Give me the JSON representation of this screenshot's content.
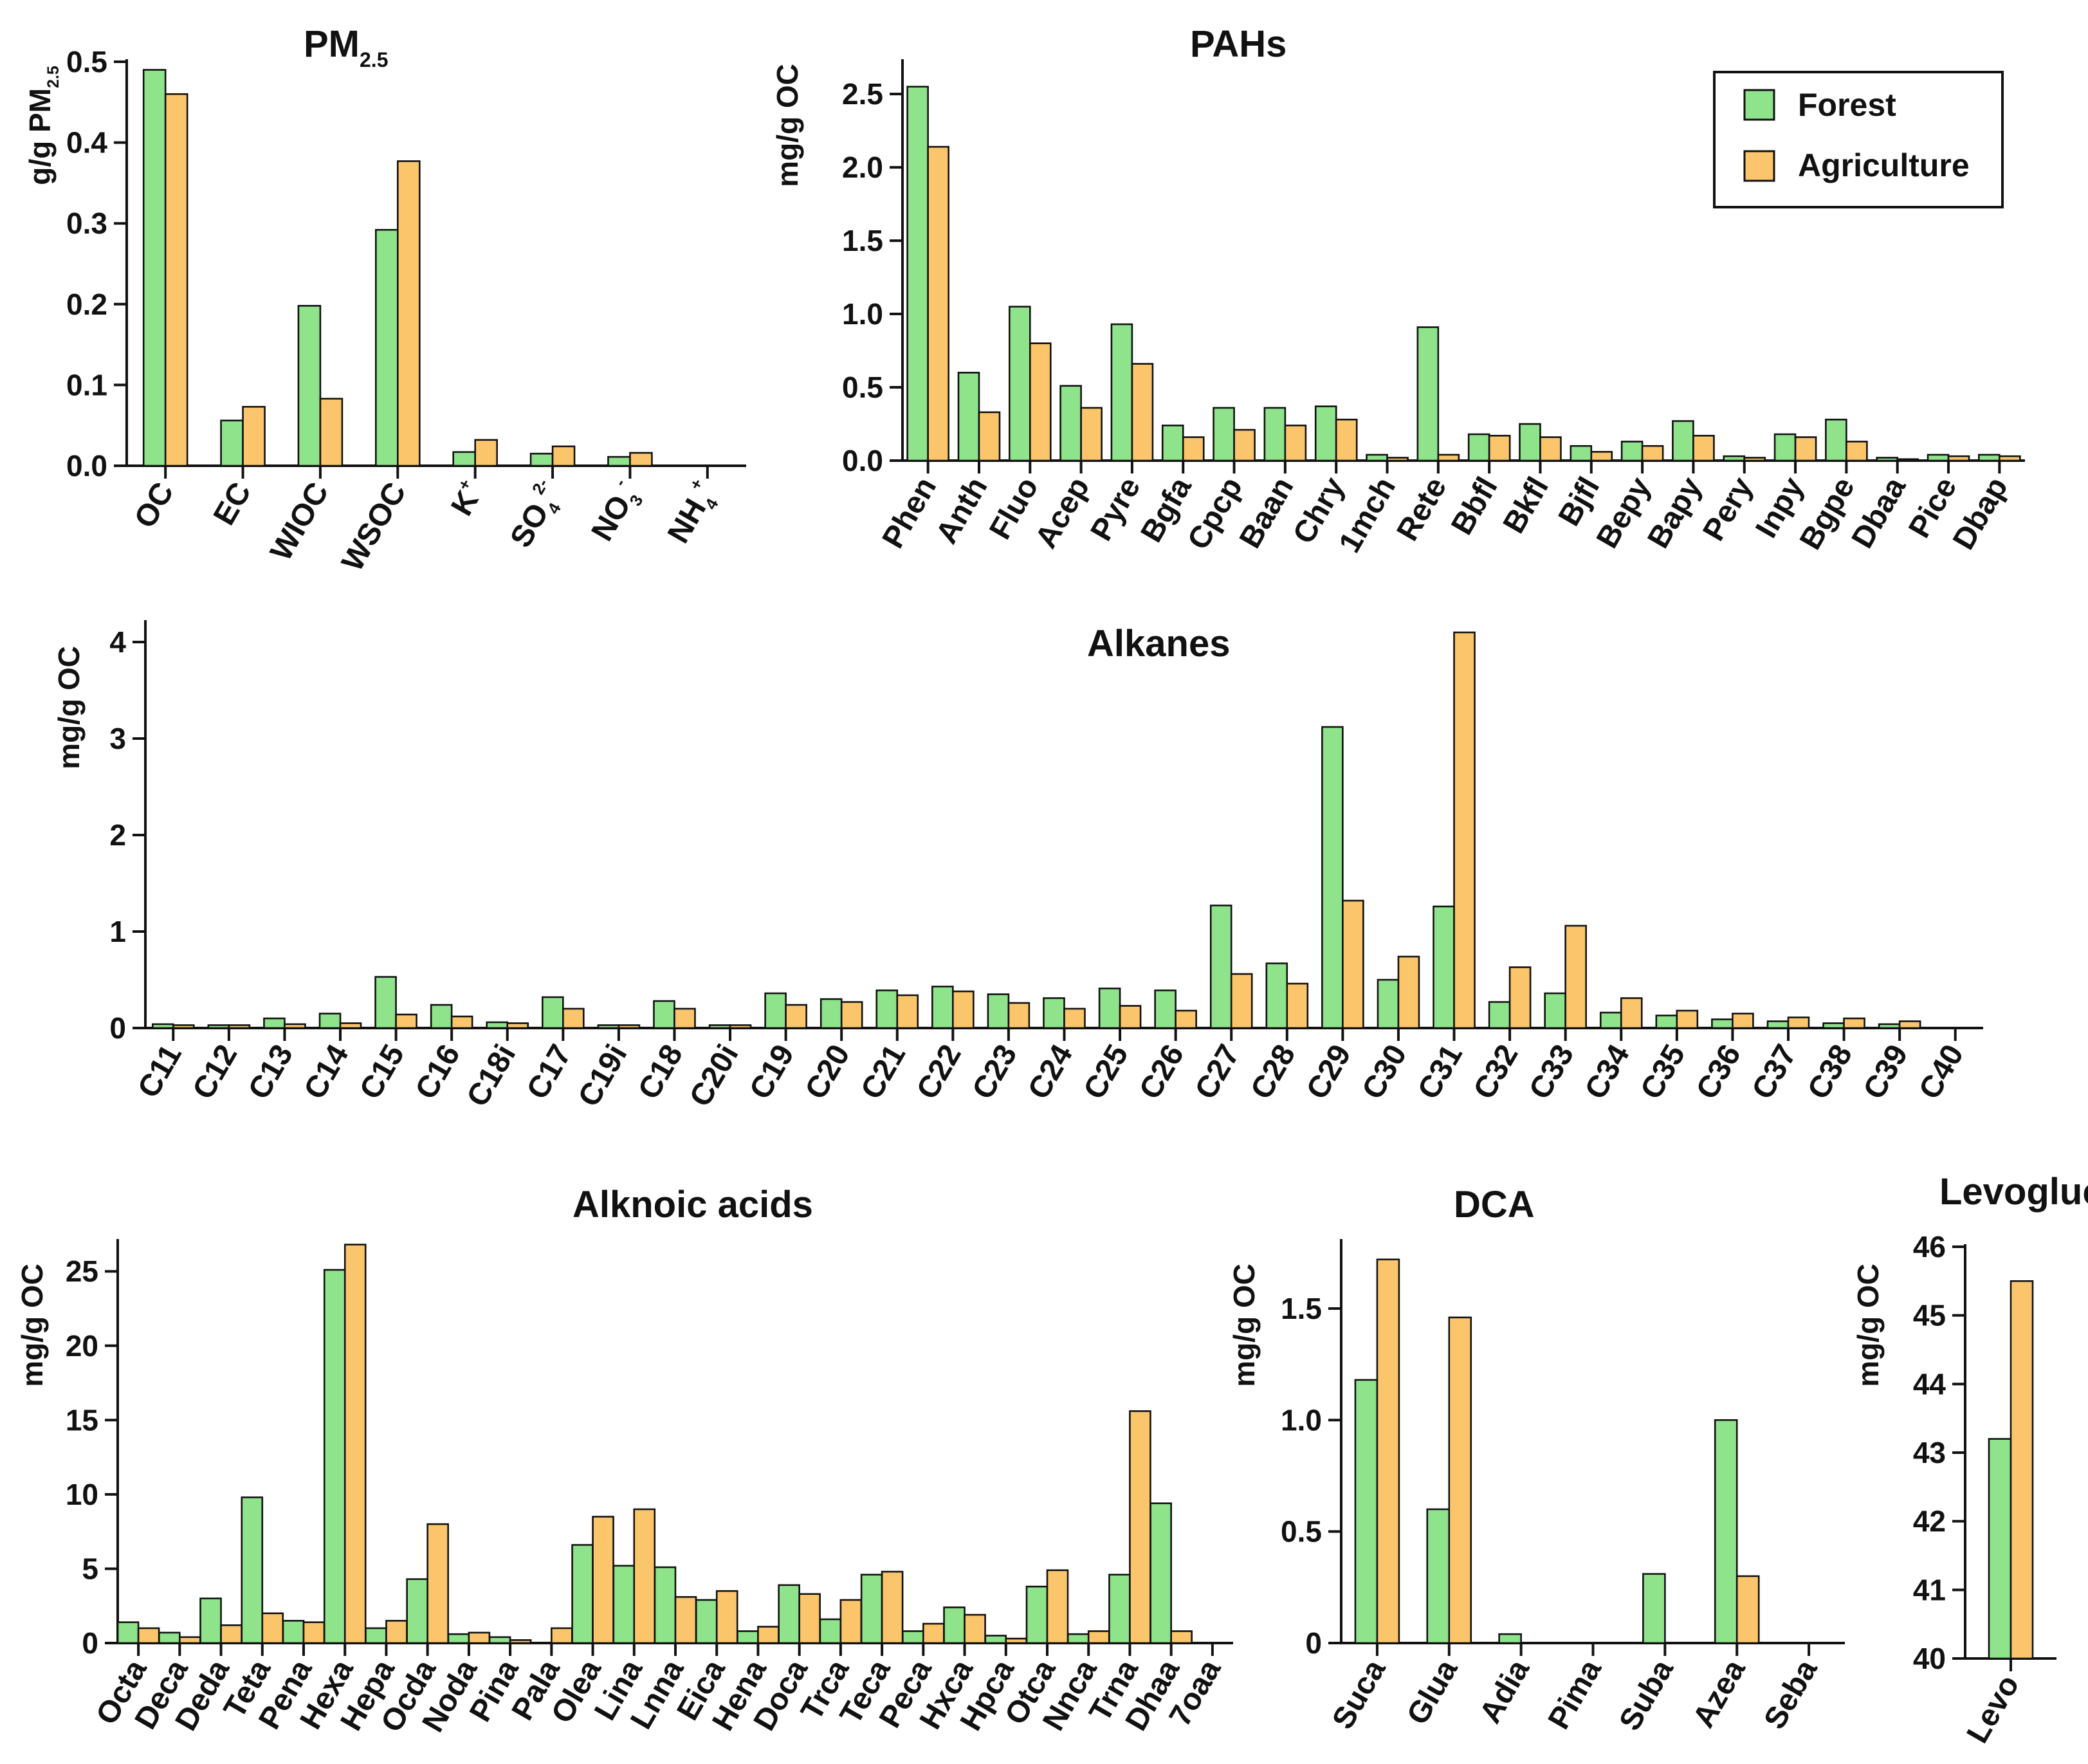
{
  "colors": {
    "forest": "#8ee38b",
    "agriculture": "#fbc56b",
    "axis": "#111111"
  },
  "legend": {
    "items": [
      "Forest",
      "Agriculture"
    ],
    "placement": "top-right of PAHs panel"
  },
  "chart_data": [
    {
      "id": "pm25",
      "type": "bar",
      "title": "PM",
      "title_sub": "2.5",
      "ylabel": "g/g PM",
      "ylabel_sub": "2.5",
      "ylim": [
        0,
        0.5
      ],
      "yticks": [
        "0.0",
        "0.1",
        "0.2",
        "0.3",
        "0.4",
        "0.5"
      ],
      "categories": [
        {
          "base": "OC"
        },
        {
          "base": "EC"
        },
        {
          "base": "WIOC"
        },
        {
          "base": "WSOC"
        },
        {
          "base": "K",
          "sup": "+"
        },
        {
          "base": "SO",
          "sub": "4",
          "sup": "2-"
        },
        {
          "base": "NO",
          "sub": "3",
          "sup": "-"
        },
        {
          "base": "NH",
          "sub": "4",
          "sup": "+"
        }
      ],
      "series": [
        {
          "name": "Forest",
          "values": [
            0.49,
            0.056,
            0.198,
            0.292,
            0.017,
            0.015,
            0.011,
            0
          ]
        },
        {
          "name": "Agriculture",
          "values": [
            0.46,
            0.073,
            0.083,
            0.377,
            0.032,
            0.024,
            0.016,
            0
          ]
        }
      ]
    },
    {
      "id": "pahs",
      "type": "bar",
      "title": "PAHs",
      "ylabel": "mg/g OC",
      "ylim": [
        0,
        2.72
      ],
      "yticks": [
        "0.0",
        "0.5",
        "1.0",
        "1.5",
        "2.0",
        "2.5"
      ],
      "categories": [
        "Phen",
        "Anth",
        "Fluo",
        "Acep",
        "Pyre",
        "Bgfa",
        "Cpcp",
        "Baan",
        "Chry",
        "1mch",
        "Rete",
        "Bbfl",
        "Bkfl",
        "Bjfl",
        "Bepy",
        "Bapy",
        "Pery",
        "Inpy",
        "Bgpe",
        "Dbaa",
        "Pice",
        "Dbap"
      ],
      "series": [
        {
          "name": "Forest",
          "values": [
            2.55,
            0.6,
            1.05,
            0.51,
            0.93,
            0.24,
            0.36,
            0.36,
            0.37,
            0.04,
            0.91,
            0.18,
            0.25,
            0.1,
            0.13,
            0.27,
            0.03,
            0.18,
            0.28,
            0.02,
            0.04,
            0.04
          ]
        },
        {
          "name": "Agriculture",
          "values": [
            2.14,
            0.33,
            0.8,
            0.36,
            0.66,
            0.16,
            0.21,
            0.24,
            0.28,
            0.02,
            0.04,
            0.17,
            0.16,
            0.06,
            0.1,
            0.17,
            0.02,
            0.16,
            0.13,
            0.01,
            0.03,
            0.03
          ]
        }
      ]
    },
    {
      "id": "alkanes",
      "type": "bar",
      "title": "Alkanes",
      "ylabel": "mg/g OC",
      "ylim": [
        0,
        4.2
      ],
      "yticks": [
        "0",
        "1",
        "2",
        "3",
        "4"
      ],
      "categories": [
        "C11",
        "C12",
        "C13",
        "C14",
        "C15",
        "C16",
        "C18i",
        "C17",
        "C19i",
        "C18",
        "C20i",
        "C19",
        "C20",
        "C21",
        "C22",
        "C23",
        "C24",
        "C25",
        "C26",
        "C27",
        "C28",
        "C29",
        "C30",
        "C31",
        "C32",
        "C33",
        "C34",
        "C35",
        "C36",
        "C37",
        "C38",
        "C39",
        "C40"
      ],
      "series": [
        {
          "name": "Forest",
          "values": [
            0.04,
            0.03,
            0.1,
            0.15,
            0.53,
            0.24,
            0.06,
            0.32,
            0.03,
            0.28,
            0.03,
            0.36,
            0.3,
            0.39,
            0.43,
            0.35,
            0.31,
            0.41,
            0.39,
            1.27,
            0.67,
            3.12,
            0.5,
            1.26,
            0.27,
            0.36,
            0.16,
            0.13,
            0.09,
            0.07,
            0.05,
            0.04,
            0
          ]
        },
        {
          "name": "Agriculture",
          "values": [
            0.03,
            0.03,
            0.04,
            0.05,
            0.14,
            0.12,
            0.05,
            0.2,
            0.03,
            0.2,
            0.03,
            0.24,
            0.27,
            0.34,
            0.38,
            0.26,
            0.2,
            0.23,
            0.18,
            0.56,
            0.46,
            1.32,
            0.74,
            4.1,
            0.63,
            1.06,
            0.31,
            0.18,
            0.15,
            0.11,
            0.1,
            0.07,
            0
          ]
        }
      ]
    },
    {
      "id": "acids",
      "type": "bar",
      "title": "Alknoic acids",
      "ylabel": "mg/g OC",
      "ylim": [
        0,
        27
      ],
      "yticks": [
        "0",
        "5",
        "10",
        "15",
        "20",
        "25"
      ],
      "categories": [
        "Octa",
        "Deca",
        "Deda",
        "Teta",
        "Pena",
        "Hexa",
        "Hepa",
        "Ocda",
        "Noda",
        "Pina",
        "Pala",
        "Olea",
        "Lina",
        "Lnna",
        "Eica",
        "Hena",
        "Doca",
        "Trca",
        "Teca",
        "Peca",
        "Hxca",
        "Hpca",
        "Otca",
        "Nnca",
        "Trna",
        "Dhaa",
        "7oaa"
      ],
      "series": [
        {
          "name": "Forest",
          "values": [
            1.4,
            0.7,
            3.0,
            9.8,
            1.5,
            25.1,
            1.0,
            4.3,
            0.6,
            0.4,
            null,
            6.6,
            5.2,
            5.1,
            2.9,
            0.8,
            3.9,
            1.6,
            4.6,
            0.8,
            2.4,
            0.5,
            3.8,
            0.6,
            4.6,
            9.4,
            null
          ]
        },
        {
          "name": "Agriculture",
          "values": [
            1.0,
            0.4,
            1.2,
            2.0,
            1.4,
            26.8,
            1.5,
            8.0,
            0.7,
            0.2,
            1.0,
            8.5,
            9.0,
            3.1,
            3.5,
            1.1,
            3.3,
            2.9,
            4.8,
            1.3,
            1.9,
            0.3,
            4.9,
            0.8,
            15.6,
            0.8,
            null
          ]
        }
      ]
    },
    {
      "id": "dca",
      "type": "bar",
      "title": "DCA",
      "ylabel": "mg/g OC",
      "ylim": [
        0,
        1.8
      ],
      "yticks": [
        "0",
        "0.5",
        "1.0",
        "1.5"
      ],
      "categories": [
        "Suca",
        "Glua",
        "Adia",
        "Pima",
        "Suba",
        "Azea",
        "Seba"
      ],
      "series": [
        {
          "name": "Forest",
          "values": [
            1.18,
            0.6,
            0.04,
            0,
            0.31,
            1.0,
            0
          ]
        },
        {
          "name": "Agriculture",
          "values": [
            1.72,
            1.46,
            0,
            0,
            0,
            0.3,
            0
          ]
        }
      ]
    },
    {
      "id": "levo",
      "type": "bar",
      "title": "Levoglucosan",
      "ylabel": "mg/g OC",
      "ylim": [
        40,
        46
      ],
      "yticks": [
        "40",
        "41",
        "42",
        "43",
        "44",
        "45",
        "46"
      ],
      "categories": [
        "Levo"
      ],
      "series": [
        {
          "name": "Forest",
          "values": [
            43.2
          ]
        },
        {
          "name": "Agriculture",
          "values": [
            45.5
          ]
        }
      ]
    }
  ]
}
